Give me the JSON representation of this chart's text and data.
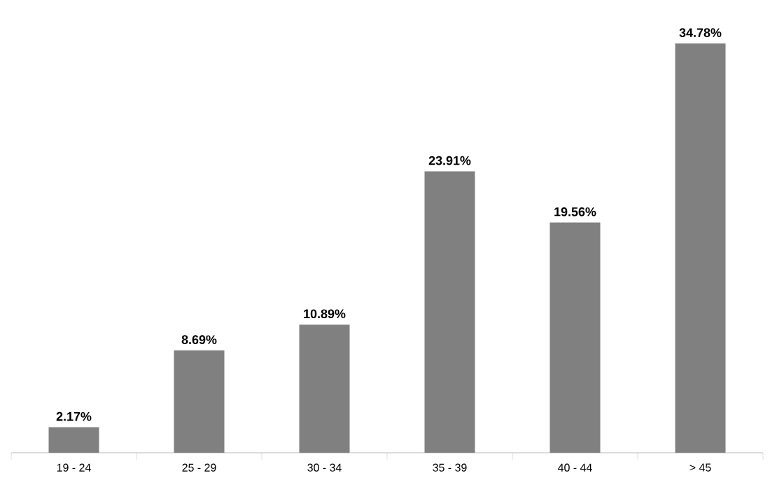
{
  "chart_data": {
    "type": "bar",
    "categories": [
      "19 - 24",
      "25 - 29",
      "30 - 34",
      "35 - 39",
      "40 - 44",
      "> 45"
    ],
    "values": [
      2.17,
      8.69,
      10.89,
      23.91,
      19.56,
      34.78
    ],
    "value_labels": [
      "2.17%",
      "8.69%",
      "10.89%",
      "23.91%",
      "19.56%",
      "34.78%"
    ],
    "color": "#808080"
  }
}
